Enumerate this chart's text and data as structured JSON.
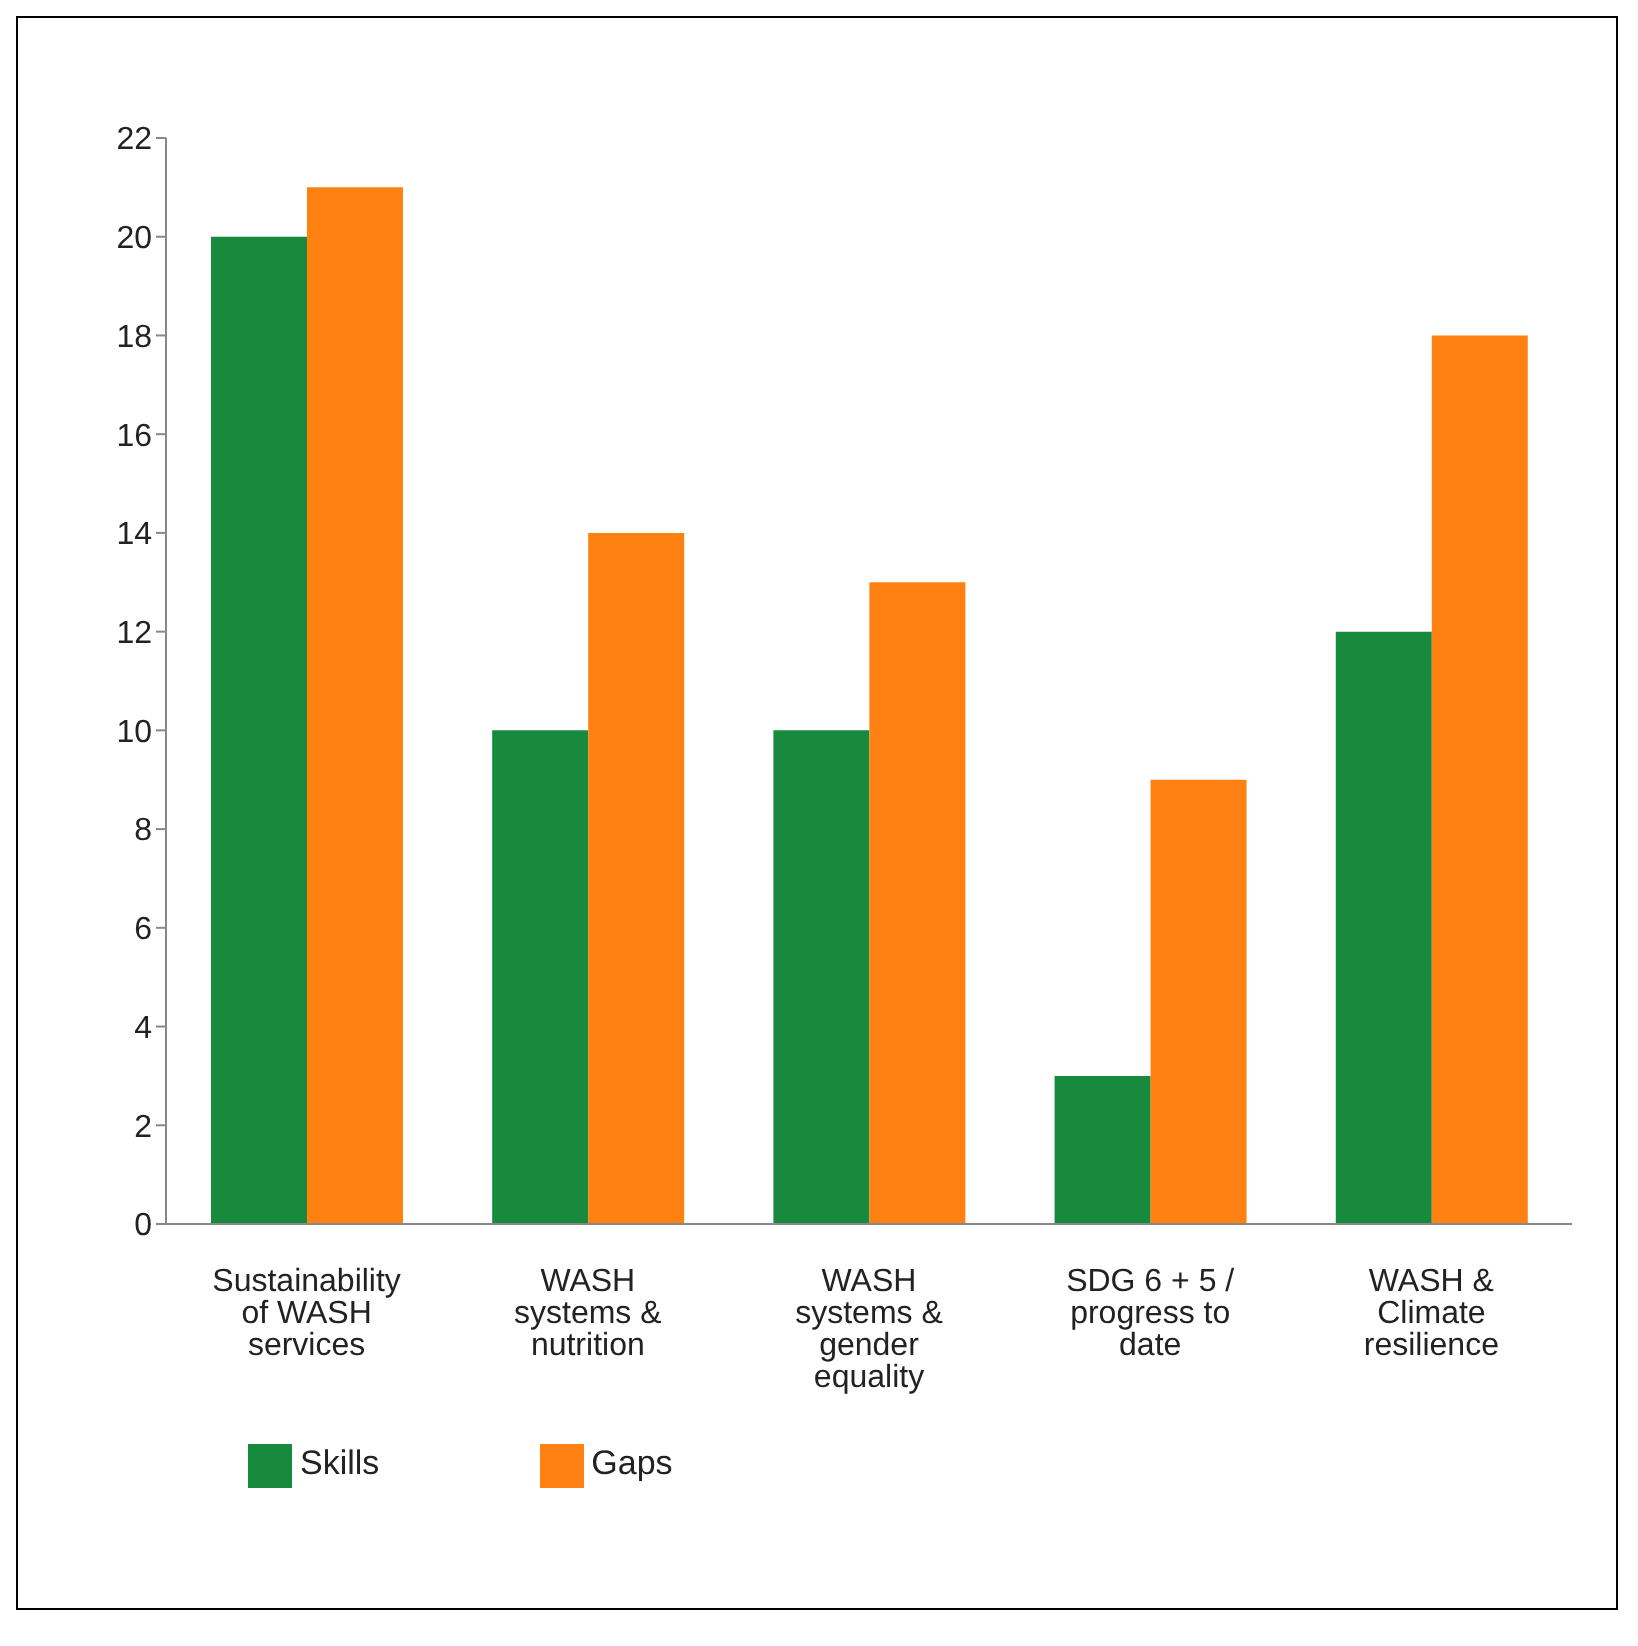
{
  "chart_data": {
    "type": "bar",
    "categories": [
      "Sustainability of WASH services",
      "WASH systems & nutrition",
      "WASH systems & gender equality",
      "SDG 6 + 5 / progress to date",
      "WASH & Climate resilience"
    ],
    "series": [
      {
        "name": "Skills",
        "color": "#178a3e",
        "values": [
          20,
          10,
          10,
          3,
          12
        ]
      },
      {
        "name": "Gaps",
        "color": "#ff8112",
        "values": [
          21,
          14,
          13,
          9,
          18
        ]
      }
    ],
    "ylim": [
      0,
      22
    ],
    "yticks": [
      0,
      2,
      4,
      6,
      8,
      10,
      12,
      14,
      16,
      18,
      20,
      22
    ],
    "grid": false,
    "legend": "bottom left"
  }
}
